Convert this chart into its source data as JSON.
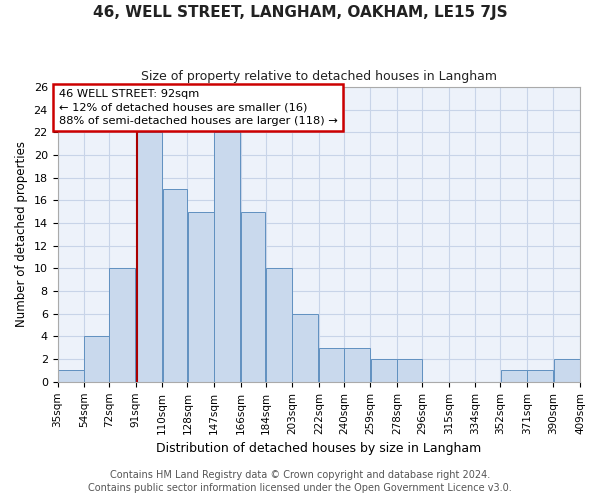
{
  "title": "46, WELL STREET, LANGHAM, OAKHAM, LE15 7JS",
  "subtitle": "Size of property relative to detached houses in Langham",
  "xlabel": "Distribution of detached houses by size in Langham",
  "ylabel": "Number of detached properties",
  "bin_labels": [
    "35sqm",
    "54sqm",
    "72sqm",
    "91sqm",
    "110sqm",
    "128sqm",
    "147sqm",
    "166sqm",
    "184sqm",
    "203sqm",
    "222sqm",
    "240sqm",
    "259sqm",
    "278sqm",
    "296sqm",
    "315sqm",
    "334sqm",
    "352sqm",
    "371sqm",
    "390sqm",
    "409sqm"
  ],
  "bin_edges": [
    35,
    54,
    72,
    91,
    110,
    128,
    147,
    166,
    184,
    203,
    222,
    240,
    259,
    278,
    296,
    315,
    334,
    352,
    371,
    390,
    409
  ],
  "counts": [
    1,
    4,
    10,
    22,
    17,
    15,
    22,
    15,
    10,
    6,
    3,
    3,
    2,
    2,
    0,
    0,
    0,
    1,
    1,
    2,
    0
  ],
  "bar_color": "#c9d9ed",
  "bar_edge_color": "#6090c0",
  "property_sqm": 92,
  "vline_color": "#aa0000",
  "annotation_line1": "46 WELL STREET: 92sqm",
  "annotation_line2": "← 12% of detached houses are smaller (16)",
  "annotation_line3": "88% of semi-detached houses are larger (118) →",
  "annotation_box_color": "#ffffff",
  "annotation_box_edge_color": "#cc0000",
  "ylim": [
    0,
    26
  ],
  "yticks": [
    0,
    2,
    4,
    6,
    8,
    10,
    12,
    14,
    16,
    18,
    20,
    22,
    24,
    26
  ],
  "grid_color": "#c8d4e8",
  "bg_color": "#edf2fa",
  "plot_bg_color": "#edf2fa",
  "footer1": "Contains HM Land Registry data © Crown copyright and database right 2024.",
  "footer2": "Contains public sector information licensed under the Open Government Licence v3.0."
}
